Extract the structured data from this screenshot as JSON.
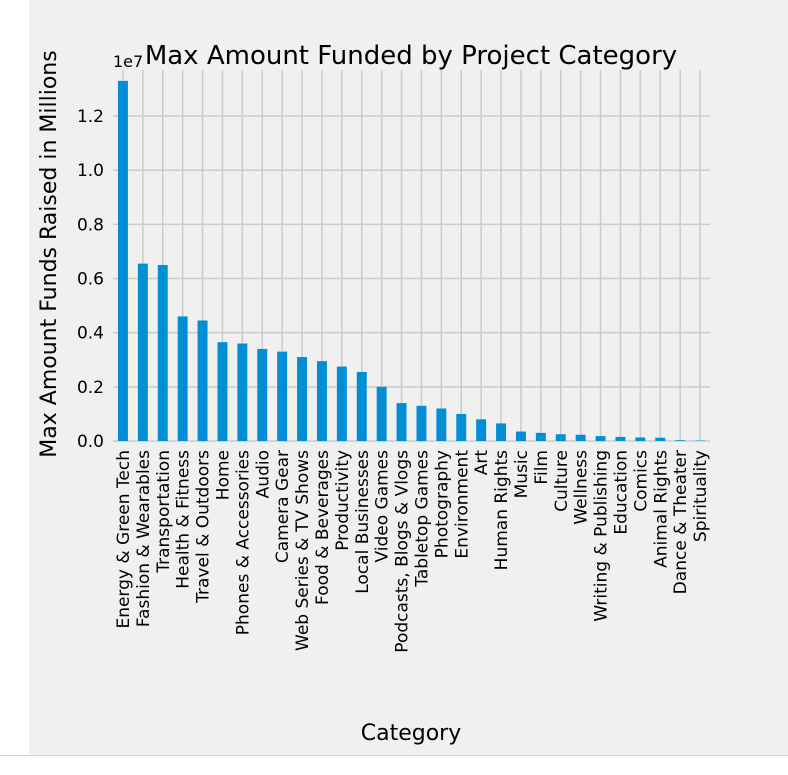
{
  "chart_data": {
    "type": "bar",
    "title": "Max Amount Funded by Project Category",
    "xlabel": "Category",
    "ylabel": "Max Amount Funds Raised in Millions",
    "offset_label": "1e7",
    "ylim": [
      0,
      13700000
    ],
    "yticks": [
      0,
      2000000,
      4000000,
      6000000,
      8000000,
      10000000,
      12000000
    ],
    "ytick_labels": [
      "0.0",
      "0.2",
      "0.4",
      "0.6",
      "0.8",
      "1.0",
      "1.2"
    ],
    "grid": true,
    "bar_color": "#008fd5",
    "categories": [
      "Energy & Green Tech",
      "Fashion & Wearables",
      "Transportation",
      "Health & Fitness",
      "Travel & Outdoors",
      "Home",
      "Phones & Accessories",
      "Audio",
      "Camera Gear",
      "Web Series & TV Shows",
      "Food & Beverages",
      "Productivity",
      "Local Businesses",
      "Video Games",
      "Podcasts, Blogs & Vlogs",
      "Tabletop Games",
      "Photography",
      "Environment",
      "Art",
      "Human Rights",
      "Music",
      "Film",
      "Culture",
      "Wellness",
      "Writing & Publishing",
      "Education",
      "Comics",
      "Animal Rights",
      "Dance & Theater",
      "Spirituality"
    ],
    "values": [
      13300000,
      6550000,
      6500000,
      4600000,
      4450000,
      3650000,
      3600000,
      3400000,
      3300000,
      3100000,
      2950000,
      2750000,
      2550000,
      2000000,
      1400000,
      1300000,
      1200000,
      1000000,
      800000,
      650000,
      350000,
      300000,
      250000,
      230000,
      180000,
      150000,
      130000,
      120000,
      30000,
      15000
    ]
  }
}
